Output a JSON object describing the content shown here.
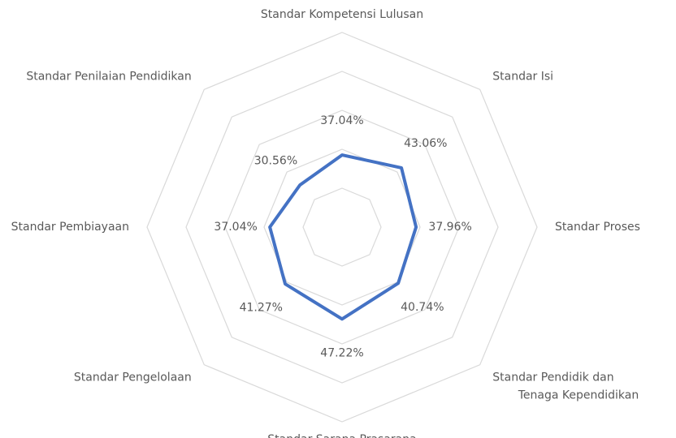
{
  "chart_data": {
    "type": "radar",
    "categories": [
      "Standar Kompetensi Lulusan",
      "Standar Isi",
      "Standar Proses",
      "Standar Pendidik dan Tenaga Kependidikan",
      "Standar Sarana Prasarana",
      "Standar Pengelolaan",
      "Standar Pembiayaan",
      "Standar Penilaian Pendidikan"
    ],
    "series": [
      {
        "color": "#4472c4",
        "values": [
          37.04,
          43.06,
          37.96,
          40.74,
          47.22,
          41.27,
          37.04,
          30.56
        ],
        "value_labels": [
          "37.04%",
          "43.06%",
          "37.96%",
          "40.74%",
          "47.22%",
          "41.27%",
          "37.04%",
          "30.56%"
        ]
      }
    ],
    "rlim": [
      0,
      100
    ],
    "rticks": [
      0,
      20,
      40,
      60,
      80,
      100
    ],
    "grid": true
  }
}
